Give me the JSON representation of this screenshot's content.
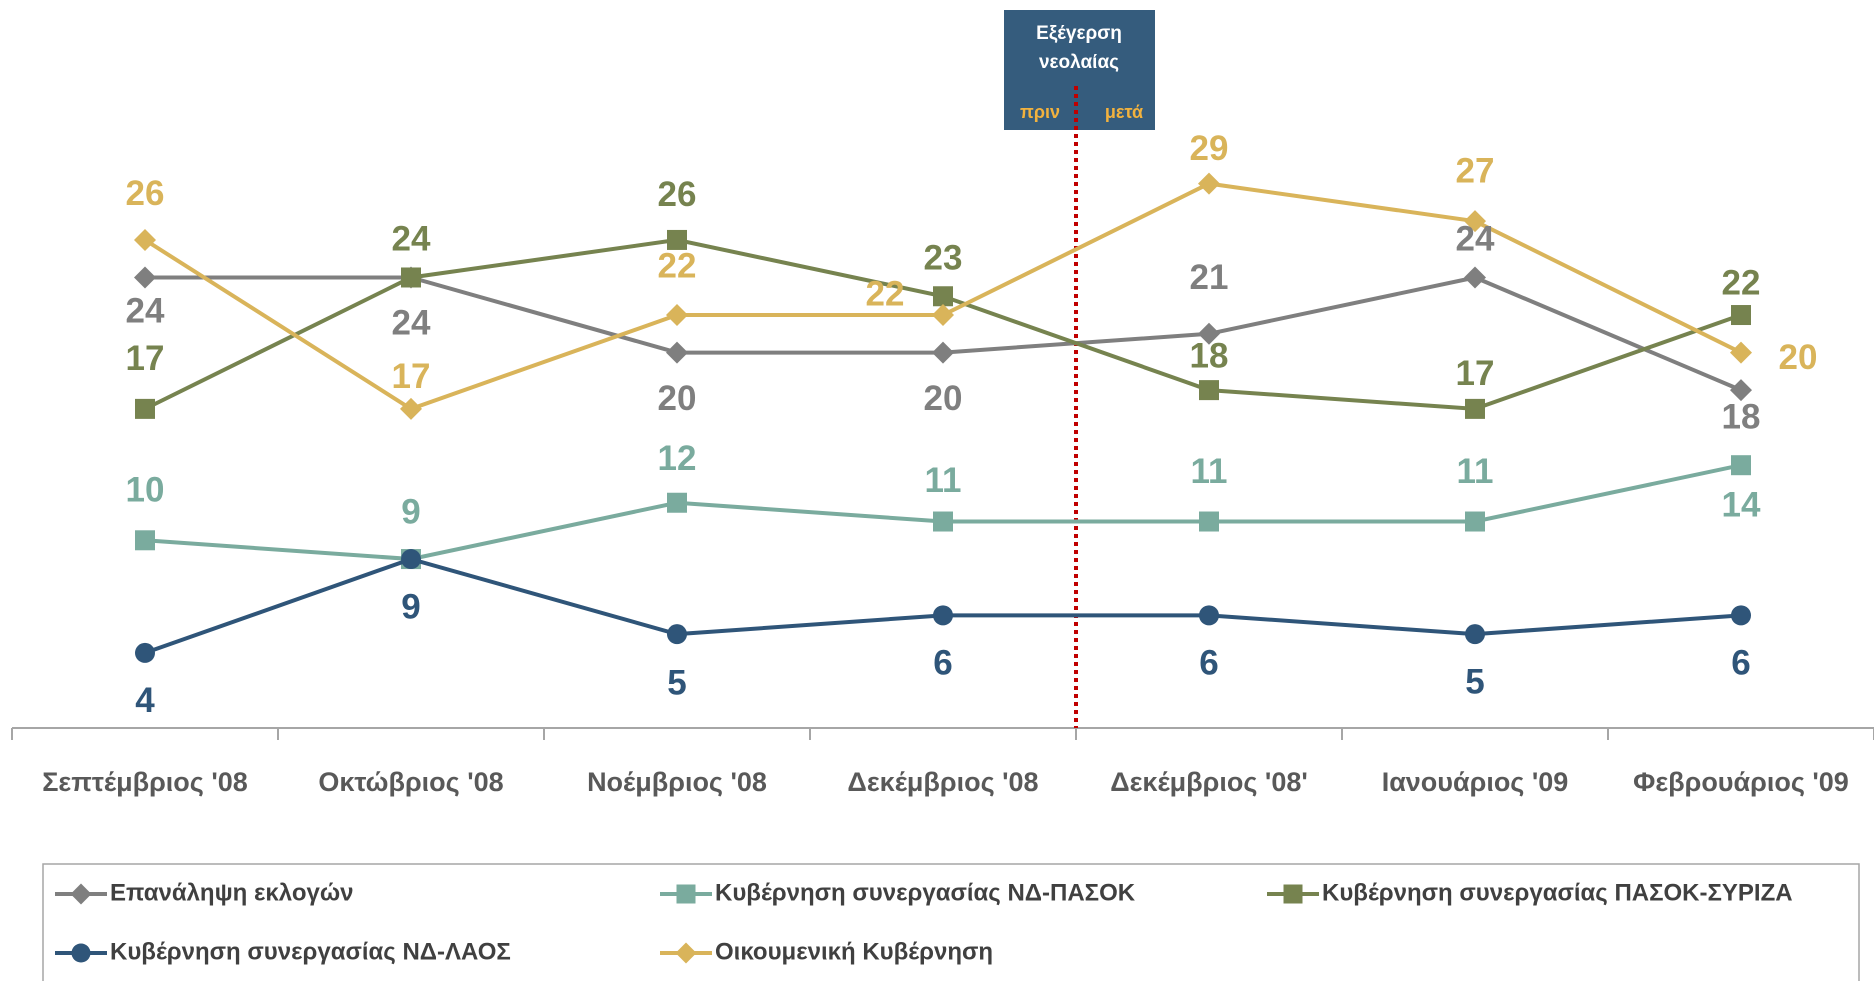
{
  "chart_data": {
    "type": "line",
    "categories": [
      "Σεπτέμβριος '08",
      "Οκτώβριος '08",
      "Νοέμβριος '08",
      "Δεκέμβριος '08",
      "Δεκέμβριος '08'",
      "Ιανουάριος '09",
      "Φεβρουάριος '09"
    ],
    "ylim": [
      0,
      35
    ],
    "series": [
      {
        "name": "Επανάληψη εκλογών",
        "color": "#7f7f7f",
        "marker": "diamond",
        "values": [
          24,
          24,
          20,
          20,
          21,
          24,
          18
        ]
      },
      {
        "name": "Κυβέρνηση συνεργασίας ΝΔ-ΠΑΣΟΚ",
        "color": "#7aab9e",
        "marker": "square",
        "values": [
          10,
          9,
          12,
          11,
          11,
          11,
          14
        ]
      },
      {
        "name": "Κυβέρνηση συνεργασίας ΠΑΣΟΚ-ΣΥΡΙΖΑ",
        "color": "#76834f",
        "marker": "square",
        "values": [
          17,
          24,
          26,
          23,
          18,
          17,
          22
        ]
      },
      {
        "name": "Κυβέρνηση συνεργασίας ΝΔ-ΛΑΟΣ",
        "color": "#2f5579",
        "marker": "circle",
        "values": [
          4,
          9,
          5,
          6,
          6,
          5,
          6
        ]
      },
      {
        "name": "Οικουμενική Κυβέρνηση",
        "color": "#d9b45a",
        "marker": "diamond",
        "values": [
          26,
          17,
          22,
          22,
          29,
          27,
          20
        ]
      }
    ],
    "annotation": {
      "lines": [
        "Εξέγερση",
        "νεολαίας"
      ],
      "before": "πριν",
      "after": "μετά"
    }
  }
}
